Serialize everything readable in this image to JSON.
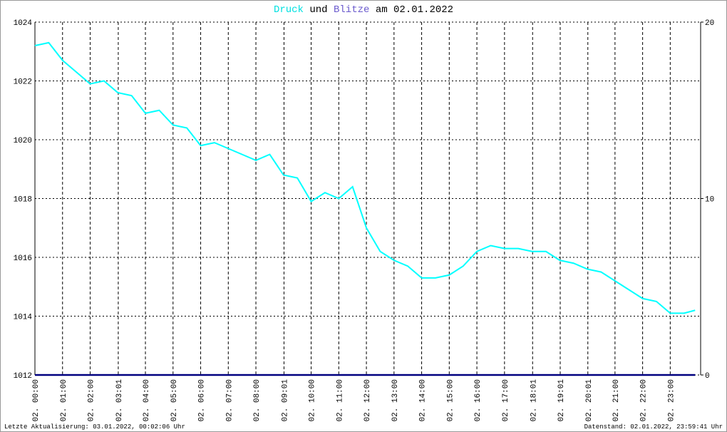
{
  "chart_data": {
    "type": "line",
    "title_connector": "und",
    "title_date": "am 02.01.2022",
    "x": [
      0,
      0.5,
      1,
      1.5,
      2,
      2.5,
      3,
      3.5,
      4,
      4.5,
      5,
      5.5,
      6,
      6.5,
      7,
      7.5,
      8,
      8.5,
      9,
      9.5,
      10,
      10.5,
      11,
      11.5,
      12,
      12.5,
      13,
      13.5,
      14,
      14.5,
      15,
      15.5,
      16,
      16.5,
      17,
      17.5,
      18,
      18.5,
      19,
      19.5,
      20,
      20.5,
      21,
      21.5,
      22,
      22.5,
      23,
      23.5,
      23.9
    ],
    "series": [
      {
        "name": "Druck",
        "color": "#00ffff",
        "values": [
          1023.2,
          1023.3,
          1022.7,
          1022.3,
          1021.9,
          1022.0,
          1021.6,
          1021.5,
          1020.9,
          1021.0,
          1020.5,
          1020.4,
          1019.8,
          1019.9,
          1019.7,
          1019.5,
          1019.3,
          1019.5,
          1018.8,
          1018.7,
          1017.9,
          1018.2,
          1018.0,
          1018.4,
          1017.0,
          1016.2,
          1015.9,
          1015.7,
          1015.3,
          1015.3,
          1015.4,
          1015.7,
          1016.2,
          1016.4,
          1016.3,
          1016.3,
          1016.2,
          1016.2,
          1015.9,
          1015.8,
          1015.6,
          1015.5,
          1015.2,
          1014.9,
          1014.6,
          1014.5,
          1014.1,
          1014.1,
          1014.2
        ]
      },
      {
        "name": "Blitze",
        "color": "#000080",
        "axis": "y2",
        "values": [
          0,
          0,
          0,
          0,
          0,
          0,
          0,
          0,
          0,
          0,
          0,
          0,
          0,
          0,
          0,
          0,
          0,
          0,
          0,
          0,
          0,
          0,
          0,
          0,
          0,
          0,
          0,
          0,
          0,
          0,
          0,
          0,
          0,
          0,
          0,
          0,
          0,
          0,
          0,
          0,
          0,
          0,
          0,
          0,
          0,
          0,
          0,
          0,
          0
        ]
      }
    ],
    "xlim": [
      0,
      24.1
    ],
    "xticks": [
      {
        "value": 0,
        "label": "02. 00:00"
      },
      {
        "value": 1,
        "label": "02. 01:00"
      },
      {
        "value": 2,
        "label": "02. 02:00"
      },
      {
        "value": 3.017,
        "label": "02. 03:01"
      },
      {
        "value": 4,
        "label": "02. 04:00"
      },
      {
        "value": 5,
        "label": "02. 05:00"
      },
      {
        "value": 6,
        "label": "02. 06:00"
      },
      {
        "value": 7,
        "label": "02. 07:00"
      },
      {
        "value": 8,
        "label": "02. 08:00"
      },
      {
        "value": 9.017,
        "label": "02. 09:01"
      },
      {
        "value": 10,
        "label": "02. 10:00"
      },
      {
        "value": 11,
        "label": "02. 11:00"
      },
      {
        "value": 12,
        "label": "02. 12:00"
      },
      {
        "value": 13,
        "label": "02. 13:00"
      },
      {
        "value": 14,
        "label": "02. 14:00"
      },
      {
        "value": 15,
        "label": "02. 15:00"
      },
      {
        "value": 16,
        "label": "02. 16:00"
      },
      {
        "value": 17,
        "label": "02. 17:00"
      },
      {
        "value": 18.017,
        "label": "02. 18:01"
      },
      {
        "value": 19.017,
        "label": "02. 19:01"
      },
      {
        "value": 20.017,
        "label": "02. 20:01"
      },
      {
        "value": 21,
        "label": "02. 21:00"
      },
      {
        "value": 22,
        "label": "02. 22:00"
      },
      {
        "value": 23,
        "label": "02. 23:00"
      }
    ],
    "ylim": [
      1012,
      1024
    ],
    "yticks": [
      1012,
      1014,
      1016,
      1018,
      1020,
      1022,
      1024
    ],
    "y2lim": [
      0,
      20
    ],
    "y2ticks": [
      0,
      10,
      20
    ],
    "grid": true,
    "footer_left": "Letzte Aktualisierung: 03.01.2022, 00:02:06 Uhr",
    "footer_right": "Datenstand: 02.01.2022, 23:59:41 Uhr"
  }
}
